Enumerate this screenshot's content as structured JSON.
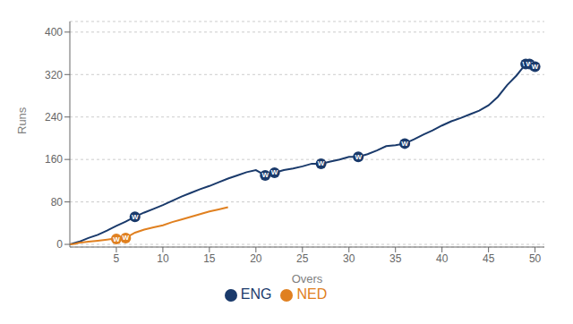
{
  "chart_data": {
    "type": "line",
    "xlabel": "Overs",
    "ylabel": "Runs",
    "xlim": [
      0,
      51
    ],
    "ylim": [
      -5,
      420
    ],
    "xticks": [
      5,
      10,
      15,
      20,
      25,
      30,
      35,
      40,
      45,
      50
    ],
    "yticks": [
      0,
      80,
      160,
      240,
      320,
      400
    ],
    "grid": true,
    "legend": "bottom",
    "series": [
      {
        "name": "ENG",
        "color": "#1a3a6b",
        "x": [
          0,
          1,
          2,
          3,
          4,
          5,
          6,
          7,
          8,
          9,
          10,
          11,
          12,
          13,
          14,
          15,
          16,
          17,
          18,
          19,
          20,
          21,
          22,
          23,
          24,
          25,
          26,
          27,
          28,
          29,
          30,
          31,
          32,
          33,
          34,
          35,
          36,
          37,
          38,
          39,
          40,
          41,
          42,
          43,
          44,
          45,
          46,
          47,
          48,
          49,
          49.2,
          49.4,
          49.6,
          50
        ],
        "values": [
          0,
          5,
          12,
          18,
          26,
          35,
          43,
          52,
          60,
          67,
          74,
          82,
          90,
          97,
          104,
          110,
          117,
          124,
          130,
          136,
          140,
          130,
          135,
          140,
          143,
          147,
          152,
          152,
          156,
          160,
          165,
          165,
          170,
          177,
          185,
          187,
          190,
          198,
          207,
          215,
          224,
          232,
          238,
          245,
          252,
          262,
          278,
          300,
          318,
          340,
          342,
          340,
          330,
          335
        ]
      },
      {
        "name": "NED",
        "color": "#e08020",
        "x": [
          0,
          0.5,
          1,
          2,
          3,
          4,
          4.5,
          5,
          6,
          6.5,
          7,
          8,
          9,
          10,
          11,
          12,
          13,
          14,
          15,
          16,
          17
        ],
        "values": [
          0,
          1,
          3,
          5,
          7,
          9,
          10,
          10,
          12,
          17,
          22,
          28,
          32,
          36,
          42,
          47,
          52,
          57,
          62,
          66,
          70
        ]
      }
    ],
    "annotations": [
      {
        "text": "W",
        "series": "ENG",
        "x": 7,
        "y": 52
      },
      {
        "text": "W",
        "series": "ENG",
        "x": 21,
        "y": 130
      },
      {
        "text": "W",
        "series": "ENG",
        "x": 22,
        "y": 135
      },
      {
        "text": "W",
        "series": "ENG",
        "x": 27,
        "y": 152
      },
      {
        "text": "W",
        "series": "ENG",
        "x": 31,
        "y": 165
      },
      {
        "text": "W",
        "series": "ENG",
        "x": 36,
        "y": 190
      },
      {
        "text": "W",
        "series": "ENG",
        "x": 49,
        "y": 340
      },
      {
        "text": "W",
        "series": "ENG",
        "x": 49.4,
        "y": 340
      },
      {
        "text": "W",
        "series": "ENG",
        "x": 50,
        "y": 335
      },
      {
        "text": "W",
        "series": "NED",
        "x": 5,
        "y": 10
      },
      {
        "text": "W",
        "series": "NED",
        "x": 6,
        "y": 12
      }
    ]
  }
}
